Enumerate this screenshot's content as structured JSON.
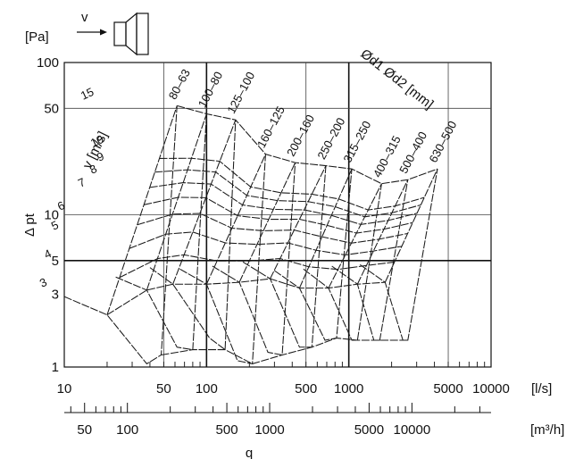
{
  "chart_data": {
    "type": "line",
    "title": "",
    "ylabel": "Δ pt",
    "y_unit": "[Pa]",
    "xlabel": "q",
    "x_unit_ls": "[l/s]",
    "x_unit_m3h": "[m³/h]",
    "y_scale": "log",
    "x_scale": "log",
    "ylim": [
      1,
      100
    ],
    "xlim_ls": [
      10,
      10000
    ],
    "y_ticks": [
      "100",
      "50",
      "10",
      "5",
      "3",
      "1"
    ],
    "x_ticks_ls": [
      "10",
      "50",
      "100",
      "500",
      "1000",
      "5000",
      "10000"
    ],
    "x_ticks_m3h": [
      "50",
      "100",
      "500",
      "1000",
      "5000",
      "10000"
    ],
    "legend_velocity": "v [m/s]",
    "legend_diameter": "Ød1 Ød2 [mm]",
    "velocity_labels": [
      "15",
      "10",
      "9",
      "8",
      "7",
      "6",
      "5",
      "4",
      "3"
    ],
    "velocities": [
      3,
      4,
      5,
      6,
      7,
      8,
      9,
      10,
      15
    ],
    "series": [
      {
        "name": "80–63",
        "points": [
          [
            10,
            2.9
          ],
          [
            20,
            2.2
          ],
          [
            38,
            1.05
          ],
          [
            48,
            1.2
          ]
        ],
        "top": [
          62,
          52
        ]
      },
      {
        "name": "100–80",
        "points": [
          [
            23,
            3.9
          ],
          [
            38,
            3.2
          ],
          [
            62,
            1.35
          ],
          [
            80,
            1.3
          ]
        ],
        "top": [
          100,
          46
        ]
      },
      {
        "name": "125–100",
        "points": [
          [
            40,
            4.5
          ],
          [
            58,
            3.5
          ],
          [
            105,
            1.55
          ],
          [
            135,
            1.3
          ]
        ],
        "top": [
          160,
          42
        ]
      },
      {
        "name": "160–125",
        "points": [
          [
            65,
            4.4
          ],
          [
            100,
            3.5
          ],
          [
            165,
            1.1
          ],
          [
            210,
            1.05
          ]
        ],
        "top": [
          260,
          25
        ]
      },
      {
        "name": "200–160",
        "points": [
          [
            110,
            4.6
          ],
          [
            170,
            3.6
          ],
          [
            270,
            1.25
          ],
          [
            340,
            1.2
          ]
        ],
        "top": [
          420,
          22
        ]
      },
      {
        "name": "250–200",
        "points": [
          [
            180,
            4.9
          ],
          [
            280,
            3.8
          ],
          [
            450,
            1.35
          ],
          [
            550,
            1.35
          ]
        ],
        "top": [
          690,
          21
        ]
      },
      {
        "name": "315–250",
        "points": [
          [
            300,
            4.3
          ],
          [
            450,
            3.3
          ],
          [
            680,
            1.5
          ],
          [
            820,
            1.55
          ]
        ],
        "top": [
          1050,
          20
        ]
      },
      {
        "name": "400–315",
        "points": [
          [
            480,
            4.4
          ],
          [
            720,
            3.3
          ],
          [
            1050,
            1.5
          ],
          [
            1150,
            1.5
          ]
        ],
        "top": [
          1700,
          16
        ]
      },
      {
        "name": "500–400",
        "points": [
          [
            760,
            4.6
          ],
          [
            1150,
            3.5
          ],
          [
            1500,
            1.5
          ],
          [
            1650,
            1.5
          ]
        ],
        "top": [
          2600,
          17
        ]
      },
      {
        "name": "630–500",
        "points": [
          [
            1200,
            4.7
          ],
          [
            1800,
            3.6
          ],
          [
            2400,
            1.5
          ],
          [
            2600,
            1.5
          ]
        ],
        "top": [
          4200,
          20
        ]
      }
    ]
  }
}
